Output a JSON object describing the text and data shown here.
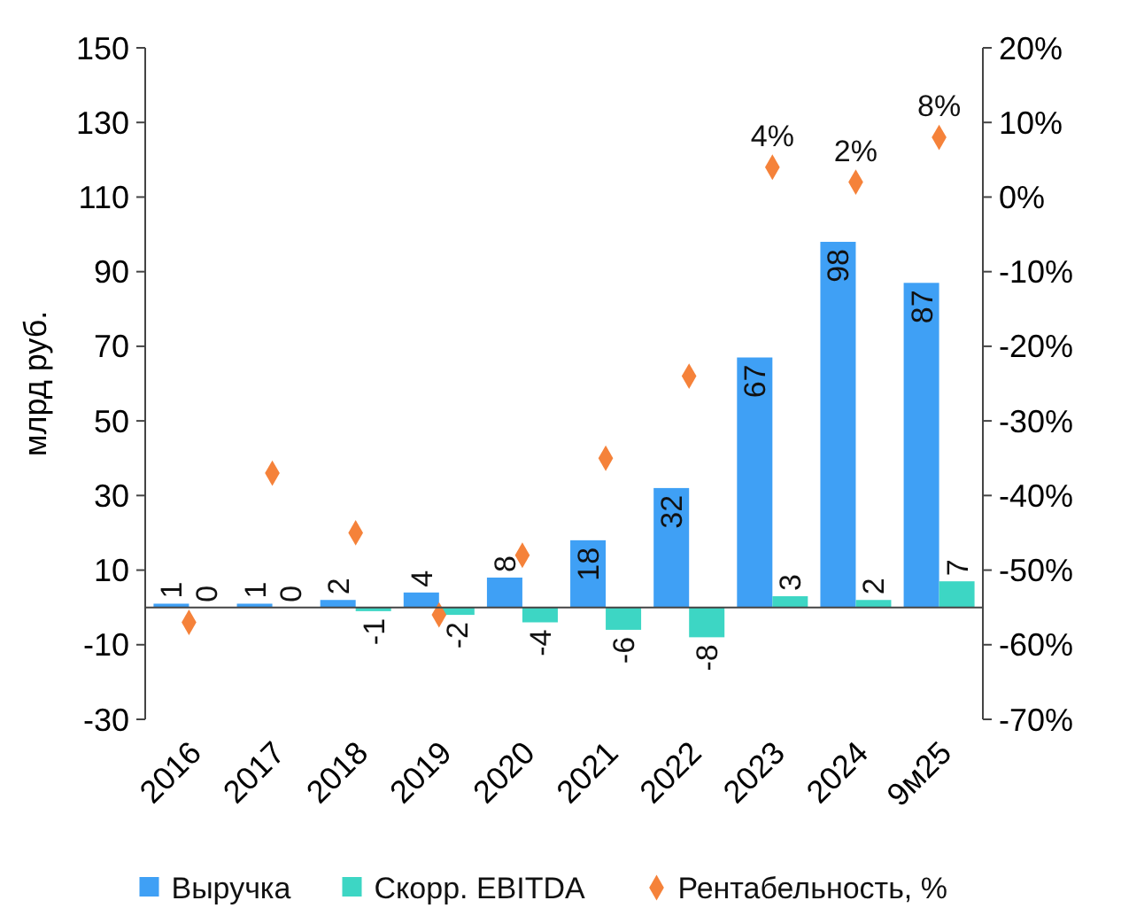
{
  "chart_data": {
    "type": "bar",
    "ylabel": "млрд руб.",
    "categories": [
      "2016",
      "2017",
      "2018",
      "2019",
      "2020",
      "2021",
      "2022",
      "2023",
      "2024",
      "9м25"
    ],
    "series": [
      {
        "name": "Выручка",
        "color": "#3fa0f5",
        "values": [
          1,
          1,
          2,
          4,
          8,
          18,
          32,
          67,
          98,
          87
        ],
        "value_labels": [
          "1",
          "1",
          "2",
          "4",
          "8",
          "18",
          "32",
          "67",
          "98",
          "87"
        ]
      },
      {
        "name": "Скорр. EBITDA",
        "color": "#3dd6c4",
        "values": [
          0,
          0,
          -1,
          -2,
          -4,
          -6,
          -8,
          3,
          2,
          7
        ],
        "value_labels": [
          "0",
          "0",
          "-1",
          "-2",
          "-4",
          "-6",
          "-8",
          "3",
          "2",
          "7"
        ]
      },
      {
        "name": "Рентабельность, %",
        "type": "scatter",
        "axis": "y2",
        "color": "#f5823a",
        "values": [
          -57,
          -37,
          -45,
          -56,
          -48,
          -35,
          -24,
          4,
          2,
          8
        ],
        "value_labels": [
          null,
          null,
          null,
          null,
          null,
          null,
          null,
          "4%",
          "2%",
          "8%"
        ]
      }
    ],
    "ylim": [
      -30,
      150
    ],
    "yticks": [
      -30,
      -10,
      10,
      30,
      50,
      70,
      90,
      110,
      130,
      150
    ],
    "y2lim": [
      -70,
      20
    ],
    "y2ticks": [
      {
        "value": -70,
        "label": "-70%"
      },
      {
        "value": -60,
        "label": "-60%"
      },
      {
        "value": -50,
        "label": "-50%"
      },
      {
        "value": -40,
        "label": "-40%"
      },
      {
        "value": -30,
        "label": "-30%"
      },
      {
        "value": -20,
        "label": "-20%"
      },
      {
        "value": -10,
        "label": "-10%"
      },
      {
        "value": 0,
        "label": "0%"
      },
      {
        "value": 10,
        "label": "10%"
      },
      {
        "value": 20,
        "label": "20%"
      }
    ],
    "marker": "diamond",
    "legend": "bottom",
    "grid": false
  }
}
